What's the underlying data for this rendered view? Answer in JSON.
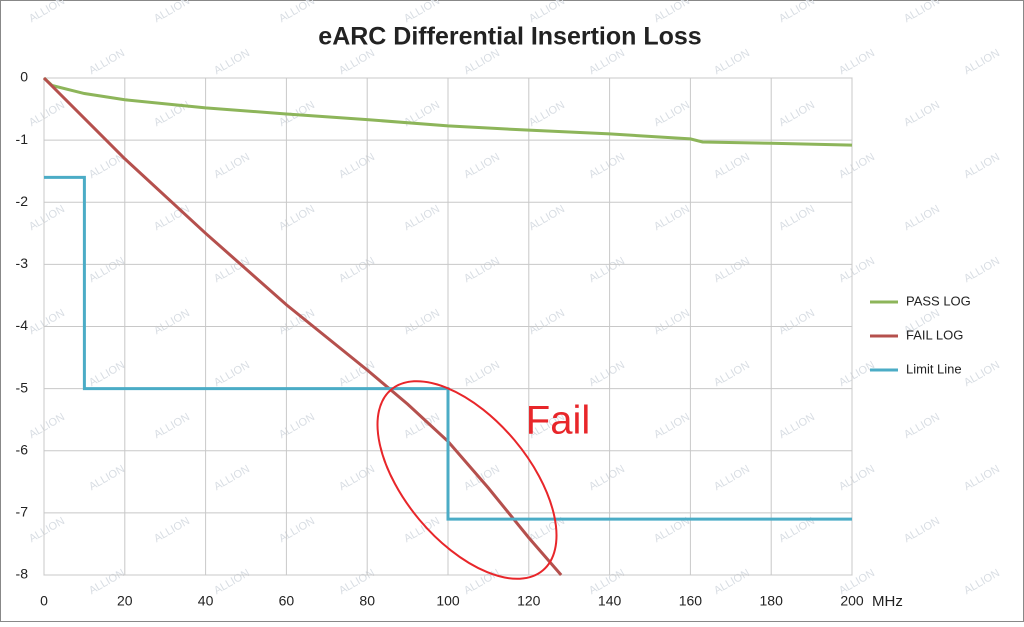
{
  "chart_data": {
    "type": "line",
    "title": "eARC Differential Insertion Loss",
    "x_label": "MHz",
    "watermark": "ALLION",
    "xlim": [
      0,
      200
    ],
    "xticks": [
      0,
      20,
      40,
      60,
      80,
      100,
      120,
      140,
      160,
      180,
      200
    ],
    "ylim": [
      -8,
      0
    ],
    "yticks": [
      0,
      -1,
      -2,
      -3,
      -4,
      -5,
      -6,
      -7,
      -8
    ],
    "grid": true,
    "legend": "right",
    "series": [
      {
        "name": "PASS LOG",
        "color": "#8db55a",
        "x": [
          0,
          2,
          10,
          20,
          40,
          60,
          80,
          100,
          120,
          140,
          160,
          163,
          180,
          200
        ],
        "values": [
          0,
          -0.12,
          -0.25,
          -0.35,
          -0.48,
          -0.58,
          -0.67,
          -0.77,
          -0.84,
          -0.9,
          -0.98,
          -1.03,
          -1.05,
          -1.08
        ]
      },
      {
        "name": "FAIL LOG",
        "color": "#b5504d",
        "x": [
          0,
          20,
          40,
          60,
          80,
          90,
          100,
          110,
          120,
          128
        ],
        "values": [
          0,
          -1.3,
          -2.5,
          -3.65,
          -4.7,
          -5.25,
          -5.85,
          -6.6,
          -7.4,
          -8
        ]
      },
      {
        "name": "Limit Line",
        "color": "#4bacc6",
        "x": [
          0,
          10,
          10,
          100,
          100,
          200
        ],
        "values": [
          -1.6,
          -1.6,
          -5,
          -5,
          -7.1,
          -7.1
        ]
      }
    ],
    "annotation": "Fail"
  }
}
